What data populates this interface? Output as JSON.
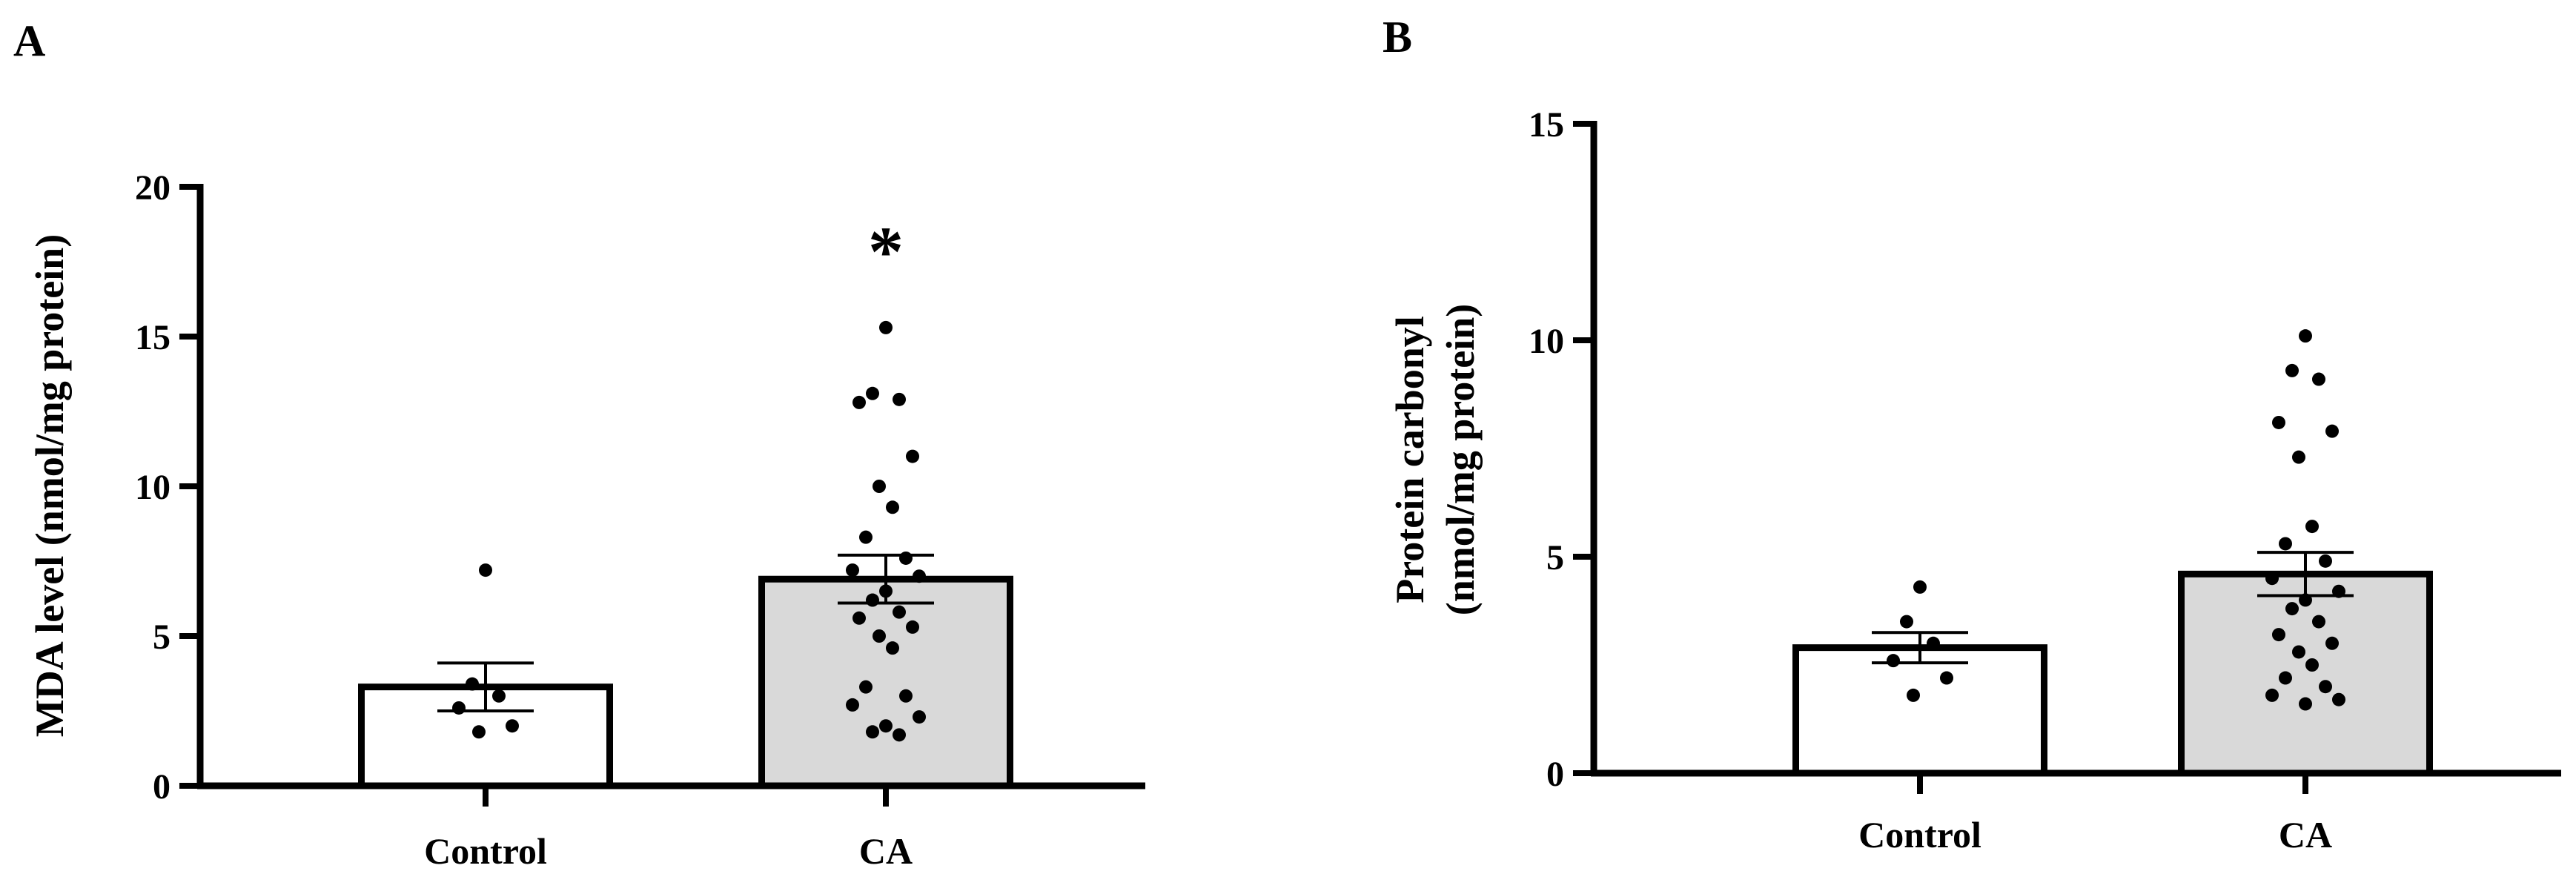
{
  "chart_data": [
    {
      "panel": "A",
      "type": "bar",
      "ylabel": "MDA level (nmol/mg protein)",
      "ylim": [
        0,
        20
      ],
      "yticks": [
        0,
        5,
        10,
        15,
        20
      ],
      "categories": [
        "Control",
        "CA"
      ],
      "values": [
        3.3,
        6.9
      ],
      "sem": [
        0.8,
        0.8
      ],
      "bar_colors": [
        "#ffffff",
        "#d9d9d9"
      ],
      "points": [
        [
          7.2,
          3.4,
          3.0,
          2.6,
          2.0,
          1.8
        ],
        [
          15.3,
          13.1,
          12.9,
          12.8,
          11.0,
          10.0,
          9.3,
          8.3,
          7.6,
          7.2,
          7.0,
          6.5,
          6.2,
          5.8,
          5.6,
          5.3,
          5.0,
          4.6,
          3.3,
          3.0,
          2.7,
          2.3,
          2.0,
          1.8,
          1.7
        ]
      ],
      "significance": [
        "",
        "*"
      ],
      "grid": false
    },
    {
      "panel": "B",
      "type": "bar",
      "ylabel_lines": [
        "Protein carbonyl",
        "(nmol/mg protein)"
      ],
      "ylim": [
        0,
        15
      ],
      "yticks": [
        0,
        5,
        10,
        15
      ],
      "categories": [
        "Control",
        "CA"
      ],
      "values": [
        2.9,
        4.6
      ],
      "sem": [
        0.35,
        0.5
      ],
      "bar_colors": [
        "#ffffff",
        "#d9d9d9"
      ],
      "points": [
        [
          4.3,
          3.5,
          3.0,
          2.6,
          2.2,
          1.8
        ],
        [
          10.1,
          9.3,
          9.1,
          8.1,
          7.9,
          7.3,
          5.7,
          5.3,
          4.9,
          4.5,
          4.2,
          4.0,
          3.8,
          3.5,
          3.2,
          3.0,
          2.8,
          2.5,
          2.2,
          2.0,
          1.8,
          1.7,
          1.6
        ]
      ],
      "significance": [
        "",
        ""
      ],
      "grid": false
    }
  ]
}
